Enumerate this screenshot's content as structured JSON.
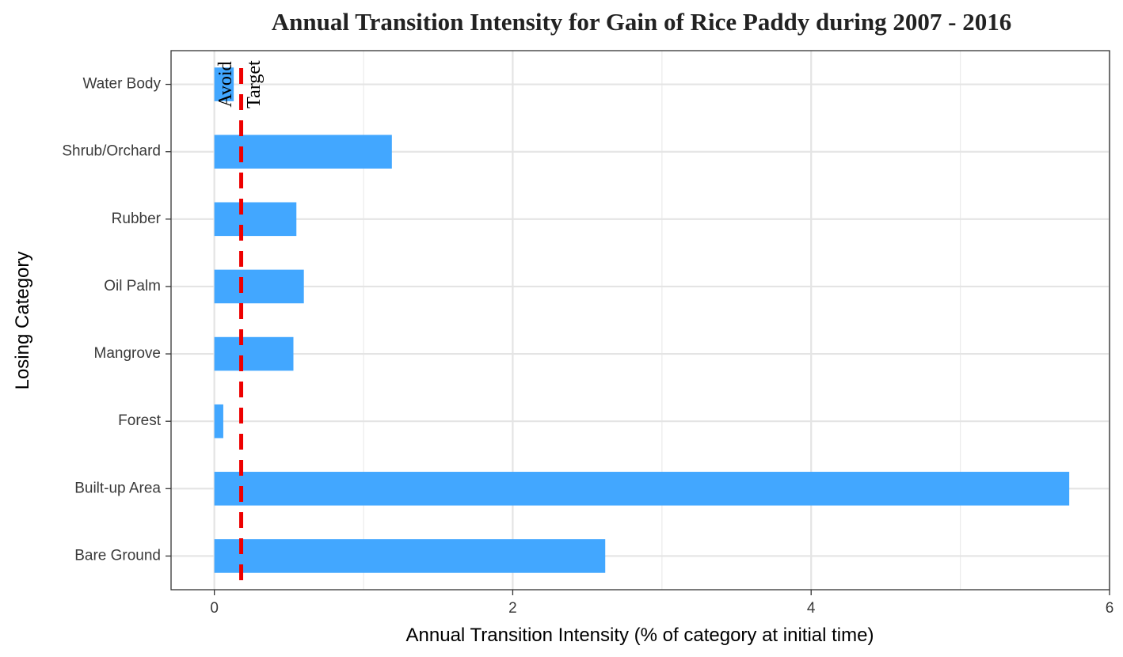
{
  "chart_data": {
    "type": "bar",
    "orientation": "horizontal",
    "title": "Annual Transition Intensity for Gain of  Rice Paddy during 2007 - 2016",
    "xlabel": "Annual Transition Intensity (% of category at initial time)",
    "ylabel": "Losing Category",
    "categories": [
      "Bare Ground",
      "Built-up Area",
      "Forest",
      "Mangrove",
      "Oil Palm",
      "Rubber",
      "Shrub/Orchard",
      "Water Body"
    ],
    "values": [
      2.62,
      5.73,
      0.06,
      0.53,
      0.6,
      0.55,
      1.19,
      0.13
    ],
    "xlim": [
      -0.29,
      6.0
    ],
    "xticks": [
      0,
      2,
      4,
      6
    ],
    "grid": true,
    "bar_color": "#42a7ff",
    "reference_line": {
      "value": 0.18,
      "style": "dashed",
      "color": "#ee0000"
    },
    "annotations": {
      "left": "Avoid",
      "right": "Target"
    }
  }
}
